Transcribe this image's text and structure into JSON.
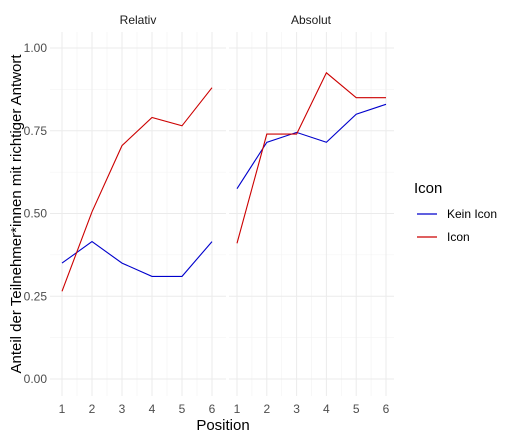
{
  "chart_data": {
    "type": "line",
    "facets": [
      "Relativ",
      "Absolut"
    ],
    "x": [
      1,
      2,
      3,
      4,
      5,
      6
    ],
    "x_tick_labels": [
      "1",
      "2",
      "3",
      "4",
      "5",
      "6"
    ],
    "xlabel": "Position",
    "ylabel": "Anteil der Teilnehmer*innen mit richtiger Antwort",
    "ylim": [
      0,
      1
    ],
    "y_ticks": [
      0,
      0.25,
      0.5,
      0.75,
      1
    ],
    "y_tick_labels": [
      "0.00",
      "0.25",
      "0.50",
      "0.75",
      "1.00"
    ],
    "grid": true,
    "legend_title": "Icon",
    "legend_position": "right",
    "series": [
      {
        "name": "Kein Icon",
        "color": "#0000cc",
        "values": {
          "Relativ": [
            0.35,
            0.415,
            0.35,
            0.31,
            0.31,
            0.415
          ],
          "Absolut": [
            0.575,
            0.715,
            0.745,
            0.715,
            0.8,
            0.83
          ]
        }
      },
      {
        "name": "Icon",
        "color": "#cc0000",
        "values": {
          "Relativ": [
            0.265,
            0.505,
            0.705,
            0.79,
            0.765,
            0.88
          ],
          "Absolut": [
            0.41,
            0.74,
            0.74,
            0.925,
            0.85,
            0.85
          ]
        }
      }
    ]
  }
}
